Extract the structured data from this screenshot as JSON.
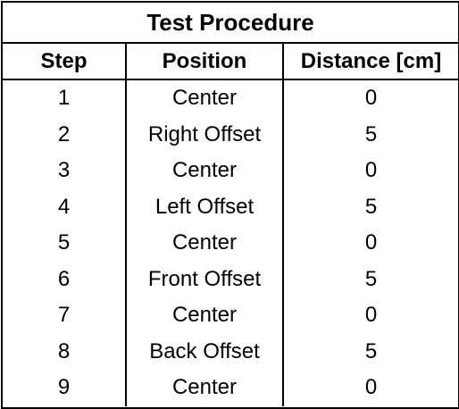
{
  "table": {
    "title": "Test Procedure",
    "headers": [
      "Step",
      "Position",
      "Distance [cm]"
    ],
    "rows": [
      [
        "1",
        "Center",
        "0"
      ],
      [
        "2",
        "Right Offset",
        "5"
      ],
      [
        "3",
        "Center",
        "0"
      ],
      [
        "4",
        "Left Offset",
        "5"
      ],
      [
        "5",
        "Center",
        "0"
      ],
      [
        "6",
        "Front Offset",
        "5"
      ],
      [
        "7",
        "Center",
        "0"
      ],
      [
        "8",
        "Back Offset",
        "5"
      ],
      [
        "9",
        "Center",
        "0"
      ]
    ]
  }
}
